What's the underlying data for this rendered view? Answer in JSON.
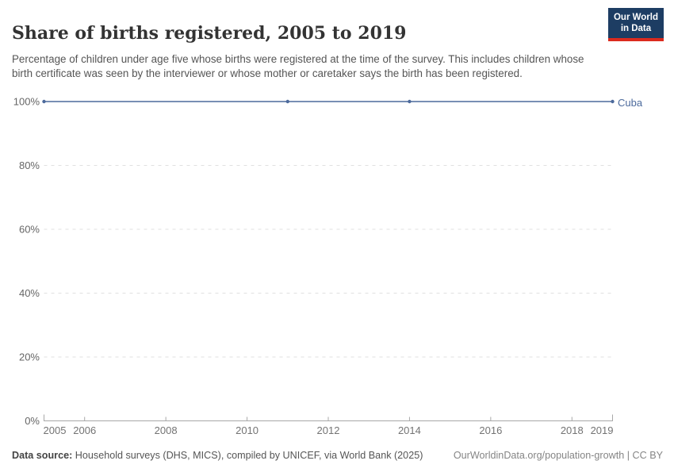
{
  "header": {
    "title": "Share of births registered, 2005 to 2019",
    "subtitle": "Percentage of children under age five whose births were registered at the time of the survey. This includes children whose birth certificate was seen by the interviewer or whose mother or caretaker says the birth has been registered.",
    "logo": {
      "line1": "Our World",
      "line2": "in Data",
      "bg_color": "#1d3d63",
      "accent_color": "#dc2a1e"
    }
  },
  "chart_data": {
    "type": "line",
    "title": "Share of births registered, 2005 to 2019",
    "xlabel": "",
    "ylabel": "",
    "xlim": [
      2005,
      2019
    ],
    "ylim": [
      0,
      100
    ],
    "grid": "horizontal-dashed",
    "legend_position": "end-of-line-label",
    "series": [
      {
        "name": "Cuba",
        "color": "#4c6a9c",
        "points": [
          {
            "x": 2005,
            "y": 100
          },
          {
            "x": 2011,
            "y": 100
          },
          {
            "x": 2014,
            "y": 100
          },
          {
            "x": 2019,
            "y": 100
          }
        ]
      }
    ],
    "yticks": [
      0,
      20,
      40,
      60,
      80,
      100
    ],
    "ytick_labels": [
      "0%",
      "20%",
      "40%",
      "60%",
      "80%",
      "100%"
    ],
    "xticks": [
      2005,
      2006,
      2008,
      2010,
      2012,
      2014,
      2016,
      2018,
      2019
    ],
    "xtick_labels": [
      "2005",
      "2006",
      "2008",
      "2010",
      "2012",
      "2014",
      "2016",
      "2018",
      "2019"
    ],
    "colors": {
      "gridline": "#e0e0e0",
      "axis": "#a8a8a8",
      "ytick_text": "#666666",
      "xtick_text": "#737373"
    }
  },
  "footer": {
    "source_label": "Data source:",
    "source_text": " Household surveys (DHS, MICS), compiled by UNICEF, via World Bank (2025)",
    "credit": "OurWorldinData.org/population-growth | CC BY"
  }
}
